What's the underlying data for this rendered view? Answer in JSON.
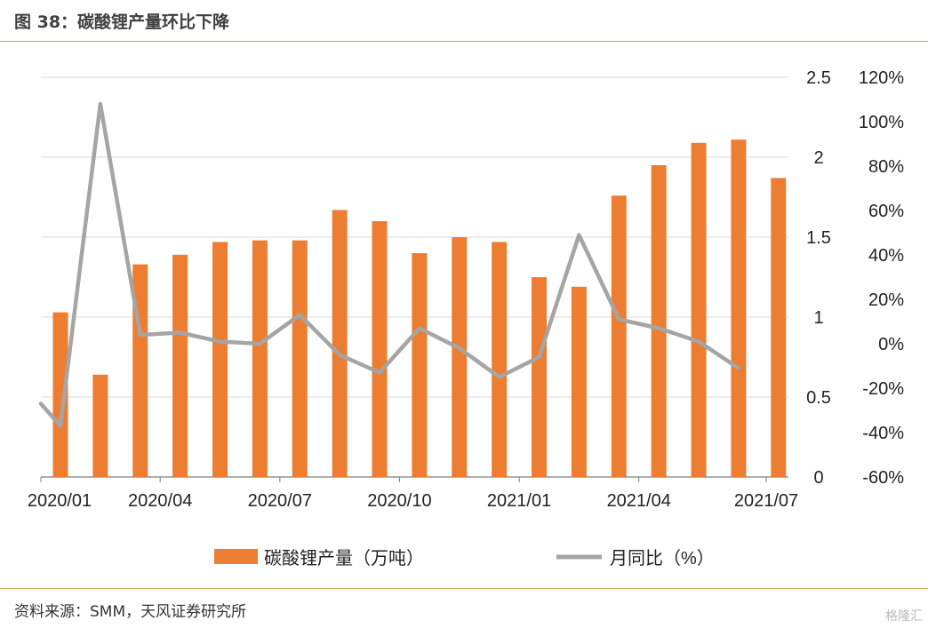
{
  "header": {
    "title": "图 38：碳酸锂产量环比下降"
  },
  "footer": {
    "source": "资料来源：SMM，天风证券研究所",
    "watermark": "格隆汇"
  },
  "chart_data": {
    "type": "bar+line",
    "categories": [
      "2020/01",
      "2020/02",
      "2020/03",
      "2020/04",
      "2020/05",
      "2020/06",
      "2020/07",
      "2020/08",
      "2020/09",
      "2020/10",
      "2020/11",
      "2020/12",
      "2021/01",
      "2021/02",
      "2021/03",
      "2021/04",
      "2021/05",
      "2021/06",
      "2021/07"
    ],
    "x_tick_labels": [
      "2020/01",
      "2020/04",
      "2020/07",
      "2020/10",
      "2021/01",
      "2021/04",
      "2021/07"
    ],
    "series": [
      {
        "name": "碳酸锂产量（万吨）",
        "type": "bar",
        "axis": "left",
        "color": "#ED7D31",
        "values": [
          1.03,
          0.64,
          1.33,
          1.39,
          1.47,
          1.48,
          1.48,
          1.67,
          1.6,
          1.4,
          1.5,
          1.47,
          1.25,
          1.19,
          1.76,
          1.95,
          2.09,
          2.11,
          1.87
        ]
      },
      {
        "name": "月同比（%）",
        "type": "line",
        "axis": "right",
        "color": "#A5A5A5",
        "values": [
          -37,
          108,
          4,
          5,
          1,
          0,
          13,
          -5,
          -13,
          7,
          -2,
          -15,
          -6,
          49,
          11,
          7,
          1,
          -11,
          null
        ]
      }
    ],
    "y_left": {
      "min": 0,
      "max": 2.5,
      "ticks": [
        "0",
        "0.5",
        "1",
        "1.5",
        "2",
        "2.5"
      ]
    },
    "y_right": {
      "min": -60,
      "max": 120,
      "ticks": [
        "-60%",
        "-40%",
        "-20%",
        "0%",
        "20%",
        "40%",
        "60%",
        "80%",
        "100%",
        "120%"
      ]
    },
    "grid": true,
    "legend_position": "bottom"
  }
}
